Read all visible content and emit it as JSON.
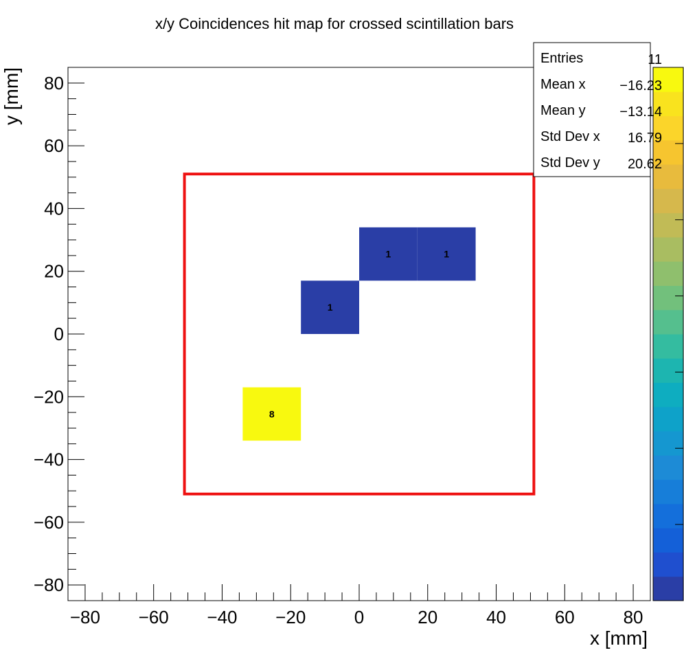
{
  "chart_data": {
    "type": "heatmap",
    "title": "x/y Coincidences hit map for crossed scintillation bars",
    "xlabel": "x [mm]",
    "ylabel": "y [mm]",
    "xlim": [
      -85,
      85
    ],
    "ylim": [
      -85,
      85
    ],
    "xticks": [
      -80,
      -60,
      -40,
      -20,
      0,
      20,
      40,
      60,
      80
    ],
    "yticks": [
      -80,
      -60,
      -40,
      -20,
      0,
      20,
      40,
      60,
      80
    ],
    "cells": [
      {
        "x0": -34,
        "x1": -17,
        "y0": -34,
        "y1": -17,
        "value": 8,
        "label": "8"
      },
      {
        "x0": -17,
        "x1": 0,
        "y0": 0,
        "y1": 17,
        "value": 1,
        "label": "1"
      },
      {
        "x0": 0,
        "x1": 17,
        "y0": 17,
        "y1": 34,
        "value": 1,
        "label": "1"
      },
      {
        "x0": 17,
        "x1": 34,
        "y0": 17,
        "y1": 34,
        "value": 1,
        "label": "1"
      }
    ],
    "region_box": {
      "x0": -51,
      "x1": 51,
      "y0": -51,
      "y1": 51,
      "color": "#ee1111"
    },
    "colorbar": {
      "min": 1,
      "max": 8,
      "colors": [
        "#2a3ea6",
        "#1f4fcf",
        "#1460d8",
        "#146fdb",
        "#177ed9",
        "#1d8bd6",
        "#1597d0",
        "#0ea2c9",
        "#0eadc0",
        "#1db5b0",
        "#34bca0",
        "#55bf8e",
        "#72c07c",
        "#8fbf6d",
        "#a9bd61",
        "#c1bb56",
        "#d6b84c",
        "#e8bb3d",
        "#f6c52f",
        "#fbd52a",
        "#f9e31e",
        "#f8f90f"
      ]
    },
    "stats": {
      "rows": [
        {
          "label": "Entries",
          "value": "11"
        },
        {
          "label": "Mean x",
          "value": "−16.23"
        },
        {
          "label": "Mean y",
          "value": "−13.14"
        },
        {
          "label": "Std Dev x",
          "value": "16.79"
        },
        {
          "label": "Std Dev y",
          "value": "20.62"
        }
      ]
    },
    "grid": false
  }
}
